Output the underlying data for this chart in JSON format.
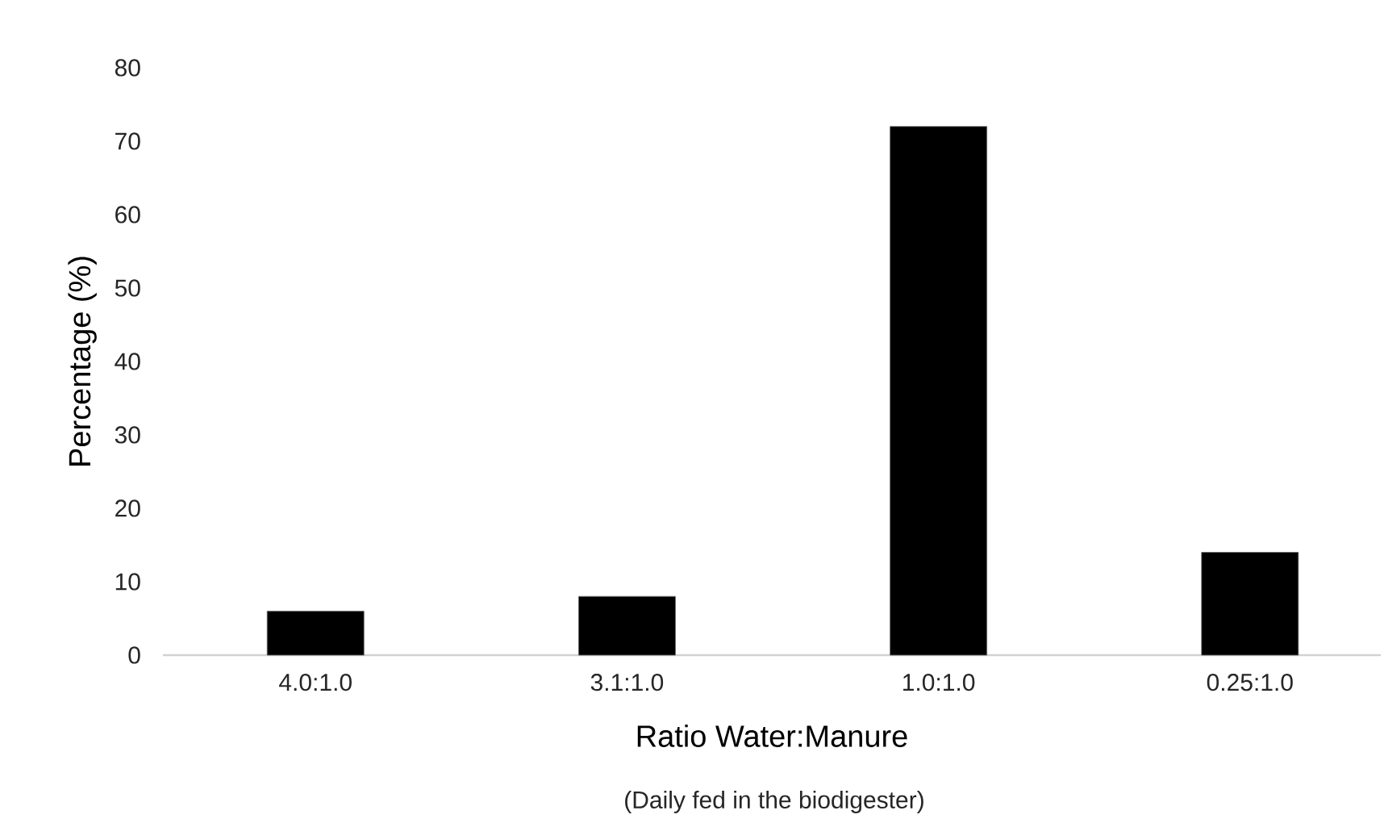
{
  "chart_data": {
    "type": "bar",
    "xlabel": "Ratio Water:Manure",
    "ylabel": "Percentage (%)",
    "annotations": [
      "(Daily fed in the biodigester)"
    ],
    "categories": [
      "4.0:1.0",
      "3.1:1.0",
      "1.0:1.0",
      "0.25:1.0"
    ],
    "values": [
      6,
      8,
      72,
      14
    ],
    "color": "#000000",
    "ylim": [
      0,
      80
    ],
    "yticks": [
      0,
      10,
      20,
      30,
      40,
      50,
      60,
      70,
      80
    ],
    "grid": false
  }
}
